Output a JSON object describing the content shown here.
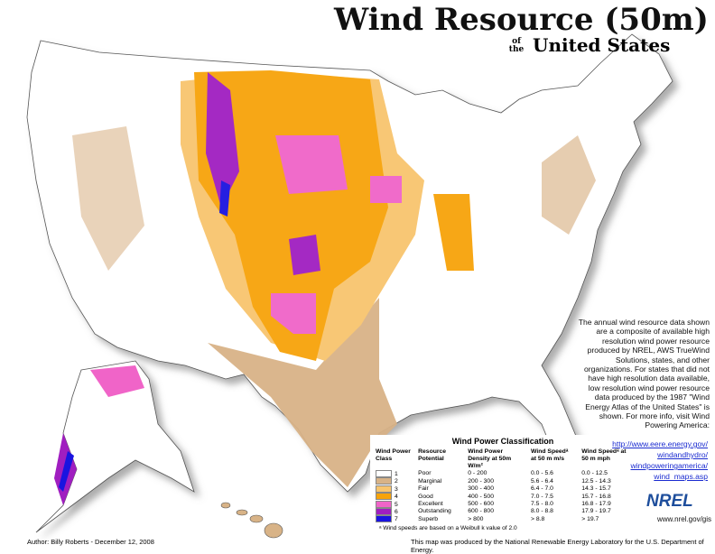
{
  "title": "Wind Resource (50m)",
  "subtitle_prefix": "of the",
  "subtitle": "United States",
  "description": "The annual wind resource data shown are a composite of available high resolution wind power resource produced by NREL, AWS TrueWind Solutions, states, and other organizations. For states that did not have high resolution data available, low resolution wind power resource data produced by the 1987 \"Wind Energy Atlas of the United States\" is shown. For more info, visit Wind Powering America:",
  "links": [
    "http://www.eere.energy.gov/",
    "windandhydro/",
    "windpoweringamerica/",
    "wind_maps.asp"
  ],
  "legend": {
    "title": "Wind Power Classification",
    "headers": [
      "Wind Power Class",
      "Resource Potential",
      "Wind Power Density at 50m W/m²",
      "Wind Speedᵃ at 50 m m/s",
      "Wind Speedᵃ at 50 m mph"
    ],
    "rows": [
      {
        "class": "1",
        "potential": "Poor",
        "density": "0 - 200",
        "ms": "0.0 - 5.6",
        "mph": "0.0 - 12.5",
        "color": "#ffffff"
      },
      {
        "class": "2",
        "potential": "Marginal",
        "density": "200 - 300",
        "ms": "5.6 - 6.4",
        "mph": "12.5 - 14.3",
        "color": "#d8b387"
      },
      {
        "class": "3",
        "potential": "Fair",
        "density": "300 - 400",
        "ms": "6.4 - 7.0",
        "mph": "14.3 - 15.7",
        "color": "#f8c56e"
      },
      {
        "class": "4",
        "potential": "Good",
        "density": "400 - 500",
        "ms": "7.0 - 7.5",
        "mph": "15.7 - 16.8",
        "color": "#f7a30a"
      },
      {
        "class": "5",
        "potential": "Excellent",
        "density": "500 - 600",
        "ms": "7.5 - 8.0",
        "mph": "16.8 - 17.9",
        "color": "#f064c8"
      },
      {
        "class": "6",
        "potential": "Outstanding",
        "density": "600 - 800",
        "ms": "8.0 - 8.8",
        "mph": "17.9 - 19.7",
        "color": "#a01ec0"
      },
      {
        "class": "7",
        "potential": "Superb",
        "density": "> 800",
        "ms": "> 8.8",
        "mph": "> 19.7",
        "color": "#1a14e0"
      }
    ],
    "footnote": "ᵃ Wind speeds are based on a Weibull k value of 2.0"
  },
  "logo": "NREL",
  "logo_url": "www.nrel.gov/gis",
  "author": "Author: Billy Roberts - December 12, 2008",
  "credit": "This map was produced by the National Renewable Energy Laboratory for the U.S. Department of Energy."
}
